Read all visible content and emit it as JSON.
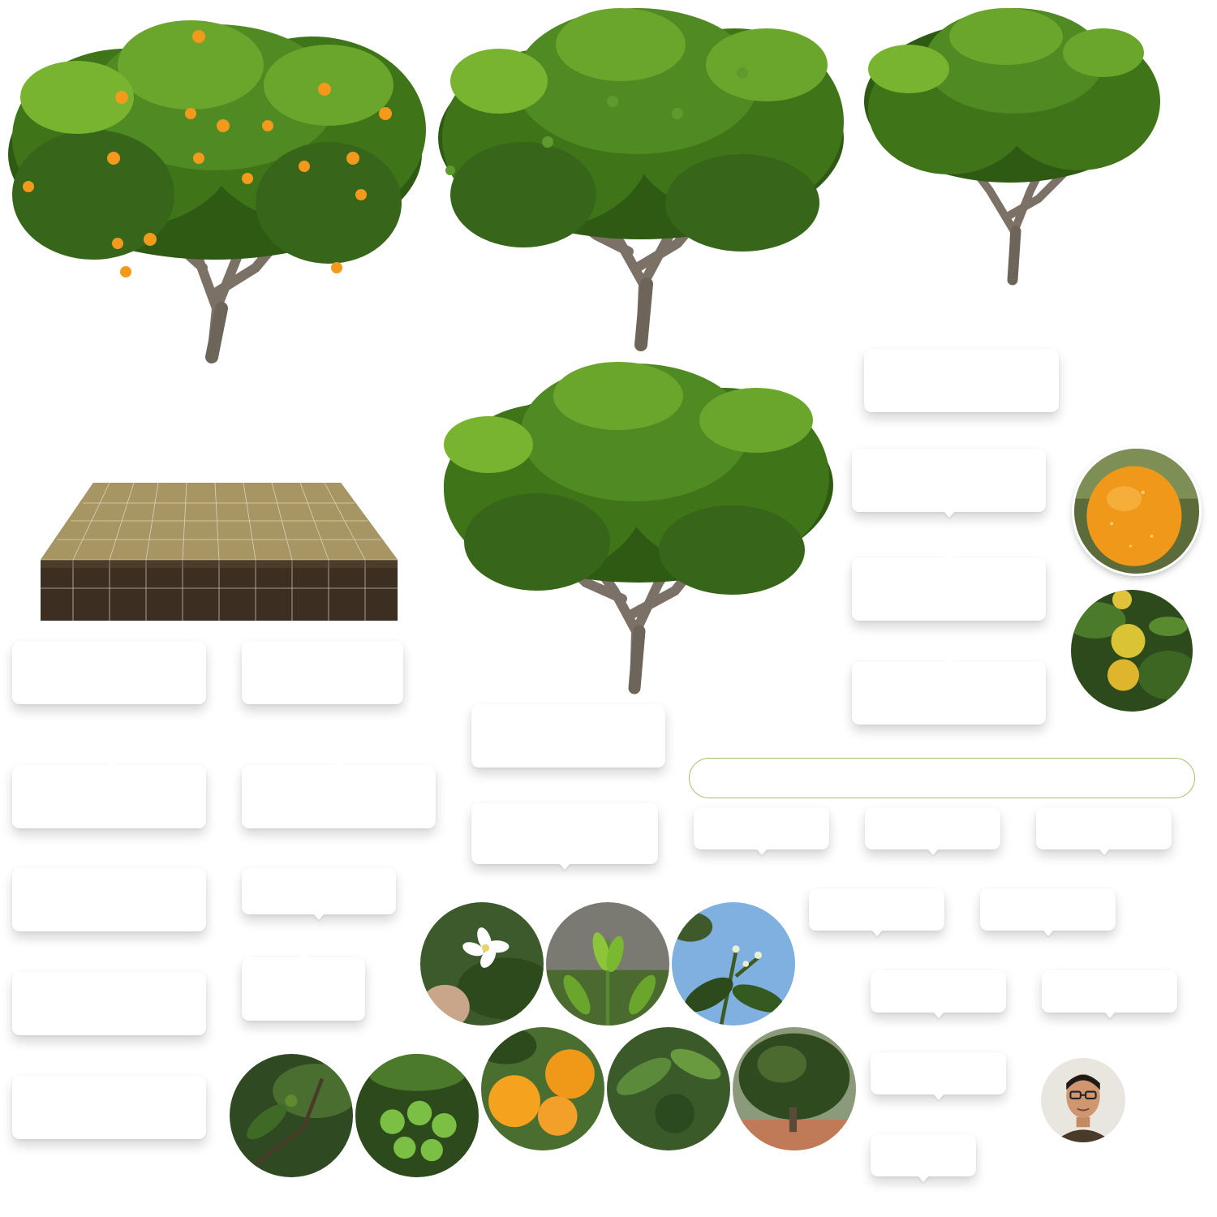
{
  "colors": {
    "leaf_dark": "#2f5a14",
    "leaf_mid": "#4f8a22",
    "leaf_light": "#8cc43a",
    "trunk": "#7b7166",
    "orange_fruit": "#f39a1c",
    "soil": "#4a3a2a",
    "grass": "#a8935f",
    "pill_border": "#9cc36a",
    "card": "#ffffff"
  },
  "icons": {
    "tree_fruiting": "orange-tree-with-ripe-fruit-icon",
    "tree_green_fruit": "orange-tree-with-green-fruit-icon",
    "tree_young": "young-orange-tree-icon",
    "tree_growing": "growing-orange-tree-icon",
    "soil_plot": "soil-plot-grid-icon",
    "photos": [
      "wet-orange-closeup-photo",
      "yellow-oranges-on-branch-photo",
      "orange-blossom-photo",
      "new-leaf-shoots-photo",
      "flower-buds-sky-photo",
      "tiny-fruit-set-photo",
      "green-young-fruits-photo",
      "ripe-oranges-photo",
      "fruit-among-leaves-photo",
      "mature-tree-photo",
      "farmer-avatar"
    ]
  }
}
